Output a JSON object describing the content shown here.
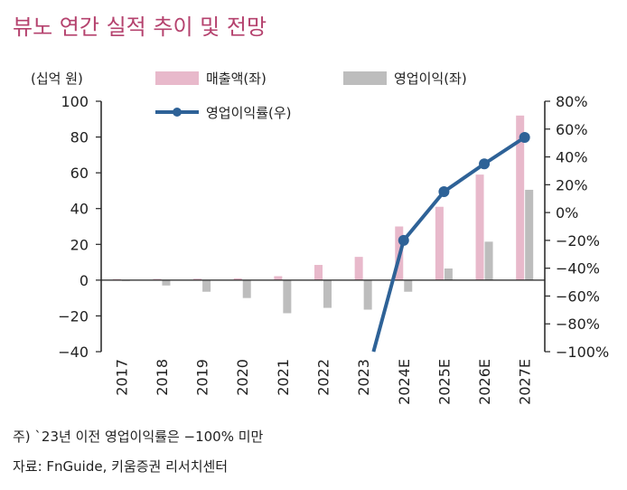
{
  "title": "뷰노 연간 실적 추이 및 전망",
  "footnotes": [
    "주) `23년 이전 영업이익률은 −100% 미만",
    "자료: FnGuide, 키움증권 리서치센터"
  ],
  "chart_data": {
    "type": "bar",
    "title": "뷰노 연간 실적 추이 및 전망",
    "unit_label": "(십억 원)",
    "categories": [
      "2017",
      "2018",
      "2019",
      "2020",
      "2021",
      "2022",
      "2023",
      "2024E",
      "2025E",
      "2026E",
      "2027E"
    ],
    "series": [
      {
        "name": "매출액(좌)",
        "type": "bar",
        "axis": "left",
        "color": "#e8b9cb",
        "values": [
          0.6,
          0.7,
          0.8,
          1.0,
          2.2,
          8.5,
          13.0,
          30.0,
          41.0,
          59.0,
          92.0
        ]
      },
      {
        "name": "영업이익(좌)",
        "type": "bar",
        "axis": "left",
        "color": "#bdbdbd",
        "values": [
          -0.5,
          -3.0,
          -6.5,
          -10.0,
          -18.5,
          -15.5,
          -16.5,
          -6.5,
          6.5,
          21.5,
          50.5
        ]
      },
      {
        "name": "영업이익률(우)",
        "type": "line",
        "axis": "right",
        "color": "#2e6297",
        "values": [
          null,
          null,
          null,
          null,
          null,
          null,
          -127.0,
          -20.0,
          15.0,
          35.0,
          54.0
        ]
      }
    ],
    "y_left": {
      "min": -40,
      "max": 100,
      "ticks": [
        -40,
        -20,
        0,
        20,
        40,
        60,
        80,
        100
      ],
      "labels": [
        "−40",
        "−20",
        "0",
        "20",
        "40",
        "60",
        "80",
        "100"
      ]
    },
    "y_right": {
      "min": -100,
      "max": 80,
      "ticks": [
        -100,
        -80,
        -60,
        -40,
        -20,
        0,
        20,
        40,
        60,
        80
      ],
      "labels": [
        "−100%",
        "−80%",
        "−60%",
        "−40%",
        "−20%",
        "0%",
        "20%",
        "40%",
        "60%",
        "80%"
      ]
    },
    "legend_position": "top",
    "grid": false
  }
}
